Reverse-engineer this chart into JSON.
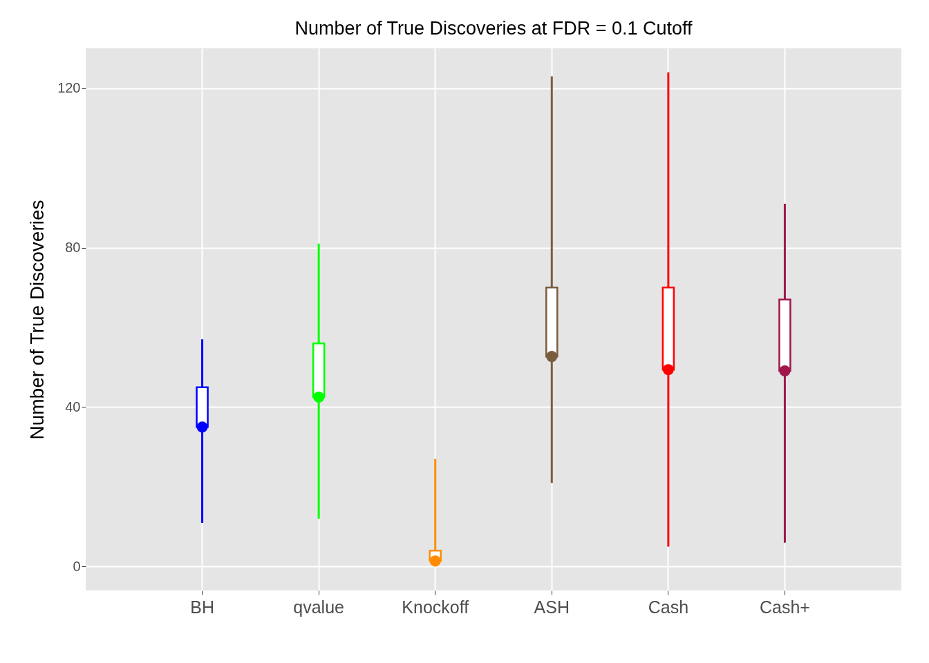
{
  "chart_data": {
    "type": "box",
    "title": "Number of True Discoveries at FDR = 0.1 Cutoff",
    "ylabel": "Number of True Discoveries",
    "categories": [
      "BH",
      "qvalue",
      "Knockoff",
      "ASH",
      "Cash",
      "Cash+"
    ],
    "colors": [
      "#0000ff",
      "#00ff00",
      "#ff8c00",
      "#7b5c3f",
      "#ff0000",
      "#a0174d"
    ],
    "boxes": [
      {
        "low": 11,
        "q1": 35,
        "median": 35,
        "q3": 45,
        "high": 57,
        "mean": 35
      },
      {
        "low": 12,
        "q1": 42.5,
        "median": 42.5,
        "q3": 56,
        "high": 81,
        "mean": 42.5
      },
      {
        "low": 0,
        "q1": 1.4,
        "median": 1.4,
        "q3": 4,
        "high": 27,
        "mean": 1.4
      },
      {
        "low": 21,
        "q1": 52.7,
        "median": 52.7,
        "q3": 70,
        "high": 123,
        "mean": 52.7
      },
      {
        "low": 5,
        "q1": 49.4,
        "median": 49.4,
        "q3": 70,
        "high": 124,
        "mean": 49.4
      },
      {
        "low": 6,
        "q1": 49.1,
        "median": 49.1,
        "q3": 67,
        "high": 91,
        "mean": 49.1
      }
    ],
    "ylim": [
      -6,
      130
    ],
    "yticks": [
      0,
      40,
      80,
      120
    ],
    "grid": true,
    "legend": false
  }
}
